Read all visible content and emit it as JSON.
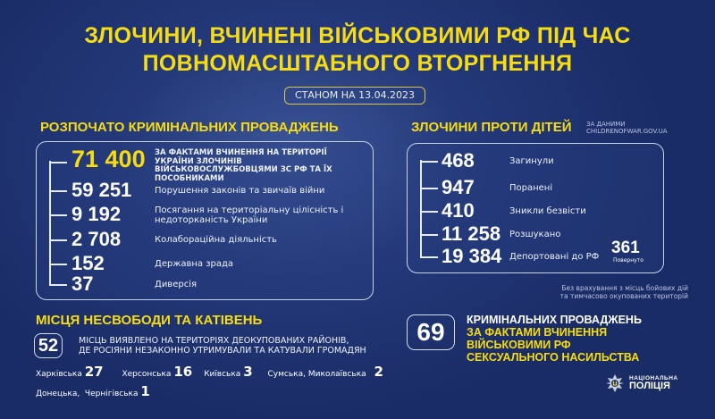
{
  "header": {
    "title_line1": "ЗЛОЧИНИ, ВЧИНЕНІ ВІЙСЬКОВИМИ РФ ПІД ЧАС",
    "title_line2": "ПОВНОМАСШТАБНОГО ВТОРГНЕННЯ",
    "date": "СТАНОМ НА 13.04.2023"
  },
  "proceedings": {
    "title": "РОЗПОЧАТО КРИМІНАЛЬНИХ ПРОВАДЖЕНЬ",
    "items": [
      {
        "value": "71 400",
        "label": "ЗА ФАКТАМИ ВЧИНЕННЯ НА ТЕРИТОРІЇ УКРАЇНИ ЗЛОЧИНІВ ВІЙСЬКОВОСЛУЖБОВЦЯМИ ЗС РФ ТА ЇХ ПОСОБНИКАМИ"
      },
      {
        "value": "59 251",
        "label": "Порушення законів та звичаїв війни"
      },
      {
        "value": "9 192",
        "label": "Посягання на територіальну цілісність і недоторканість України"
      },
      {
        "value": "2 708",
        "label": "Колабораційна діяльність"
      },
      {
        "value": "152",
        "label": "Державна зрада"
      },
      {
        "value": "37",
        "label": "Диверсія"
      }
    ]
  },
  "children": {
    "title": "ЗЛОЧИНИ ПРОТИ ДІТЕЙ",
    "source_line1": "ЗА ДАНИМИ",
    "source_line2": "CHILDRENOFWAR.GOV.UA",
    "items": [
      {
        "value": "468",
        "label": "Загинули"
      },
      {
        "value": "947",
        "label": "Поранені"
      },
      {
        "value": "410",
        "label": "Зникли безвісти"
      },
      {
        "value": "11 258",
        "label": "Розшукано"
      },
      {
        "value": "19 384",
        "label": "Депортовані до РФ"
      }
    ],
    "returned_value": "361",
    "returned_label": "Повернуто",
    "note_line1": "Без врахування з місць бойових дій",
    "note_line2": "та тимчасово окупованих територій"
  },
  "torture": {
    "title": "МІСЦЯ НЕСВОБОДИ ТА КАТІВЕНЬ",
    "value": "52",
    "text_line1": "МІСЦЬ ВИЯВЛЕНО НА ТЕРИТОРІЯХ ДЕОКУПОВАНИХ РАЙОНІВ,",
    "text_line2": "ДЕ РОСІЯНИ НЕЗАКОННО УТРИМУВАЛИ ТА КАТУВАЛИ ГРОМАДЯН",
    "regions": [
      {
        "name": "Харківська",
        "value": "27"
      },
      {
        "name": "Херсонська",
        "value": "16"
      },
      {
        "name": "Київська",
        "value": "3"
      },
      {
        "name": "Сумська, Миколаївська",
        "value": "2"
      },
      {
        "name": "Донецька,  Чернігівська",
        "value": "1"
      }
    ]
  },
  "sexual": {
    "value": "69",
    "line1": "КРИМІНАЛЬНИХ ПРОВАДЖЕНЬ",
    "line2": "ЗА ФАКТАМИ ВЧИНЕННЯ",
    "line3": "ВІЙСЬКОВИМИ РФ",
    "line4": "СЕКСУАЛЬНОГО НАСИЛЬСТВА"
  },
  "logo": {
    "line1": "НАЦІОНАЛЬНА",
    "line2": "ПОЛІЦІЯ",
    "icon": "police-star-emblem"
  },
  "colors": {
    "accent": "#f7dc12",
    "background": "#1f3371"
  }
}
